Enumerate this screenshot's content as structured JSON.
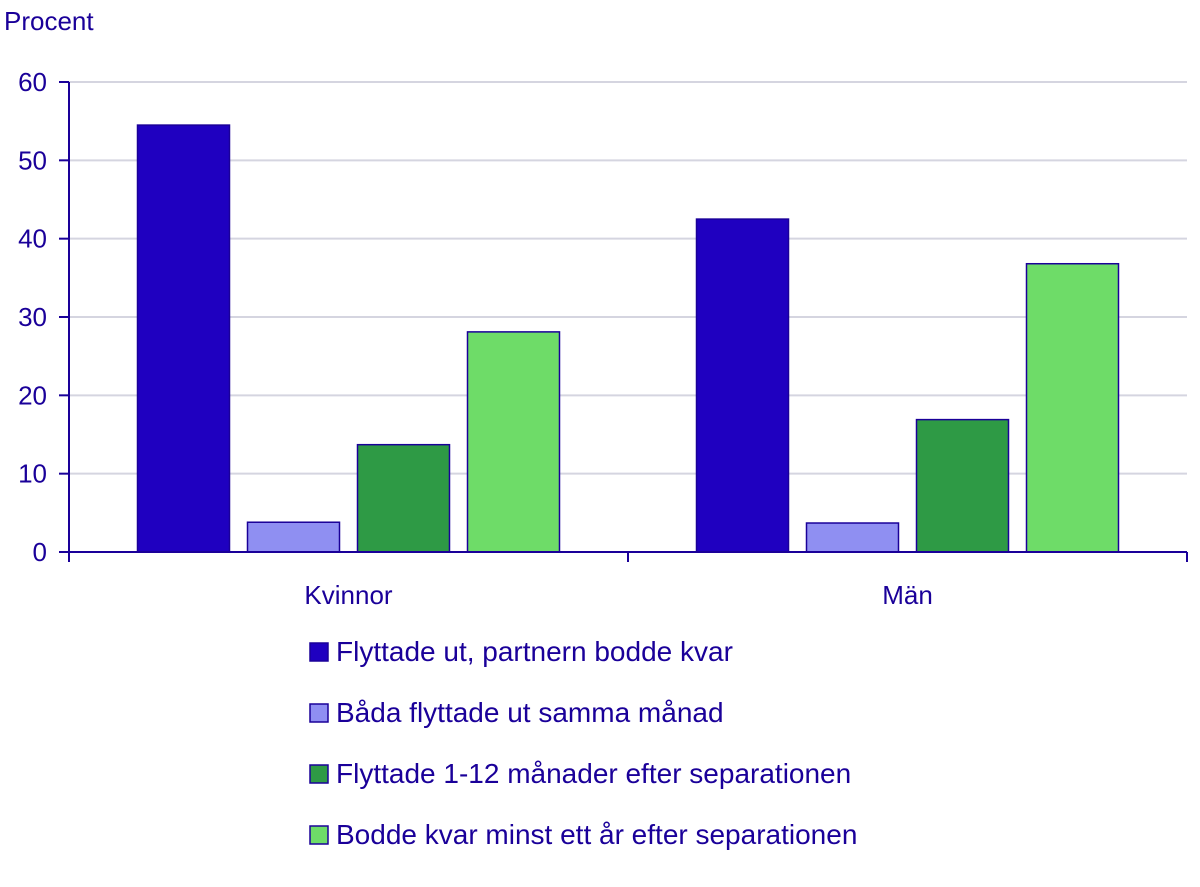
{
  "chart_data": {
    "type": "bar",
    "ylabel": "Procent",
    "xlabel": "",
    "ylim": [
      0,
      60
    ],
    "yticks": [
      0,
      10,
      20,
      30,
      40,
      50,
      60
    ],
    "grid": true,
    "legend_position": "bottom",
    "categories": [
      "Kvinnor",
      "Män"
    ],
    "series": [
      {
        "name": "Flyttade ut, partnern bodde kvar",
        "color": "#1f00c0",
        "values": [
          54.5,
          42.5
        ]
      },
      {
        "name": "Båda flyttade ut samma månad",
        "color": "#8f8ff2",
        "values": [
          3.8,
          3.7
        ]
      },
      {
        "name": "Flyttade 1-12 månader efter separationen",
        "color": "#2e9a45",
        "values": [
          13.7,
          16.9
        ]
      },
      {
        "name": "Bodde kvar minst ett år efter separationen",
        "color": "#6edc68",
        "values": [
          28.1,
          36.8
        ]
      }
    ],
    "colors": {
      "text": "#1a0099",
      "axis": "#1a0099",
      "grid": "#d5d5e0",
      "bar_stroke": "#1a0099"
    }
  }
}
